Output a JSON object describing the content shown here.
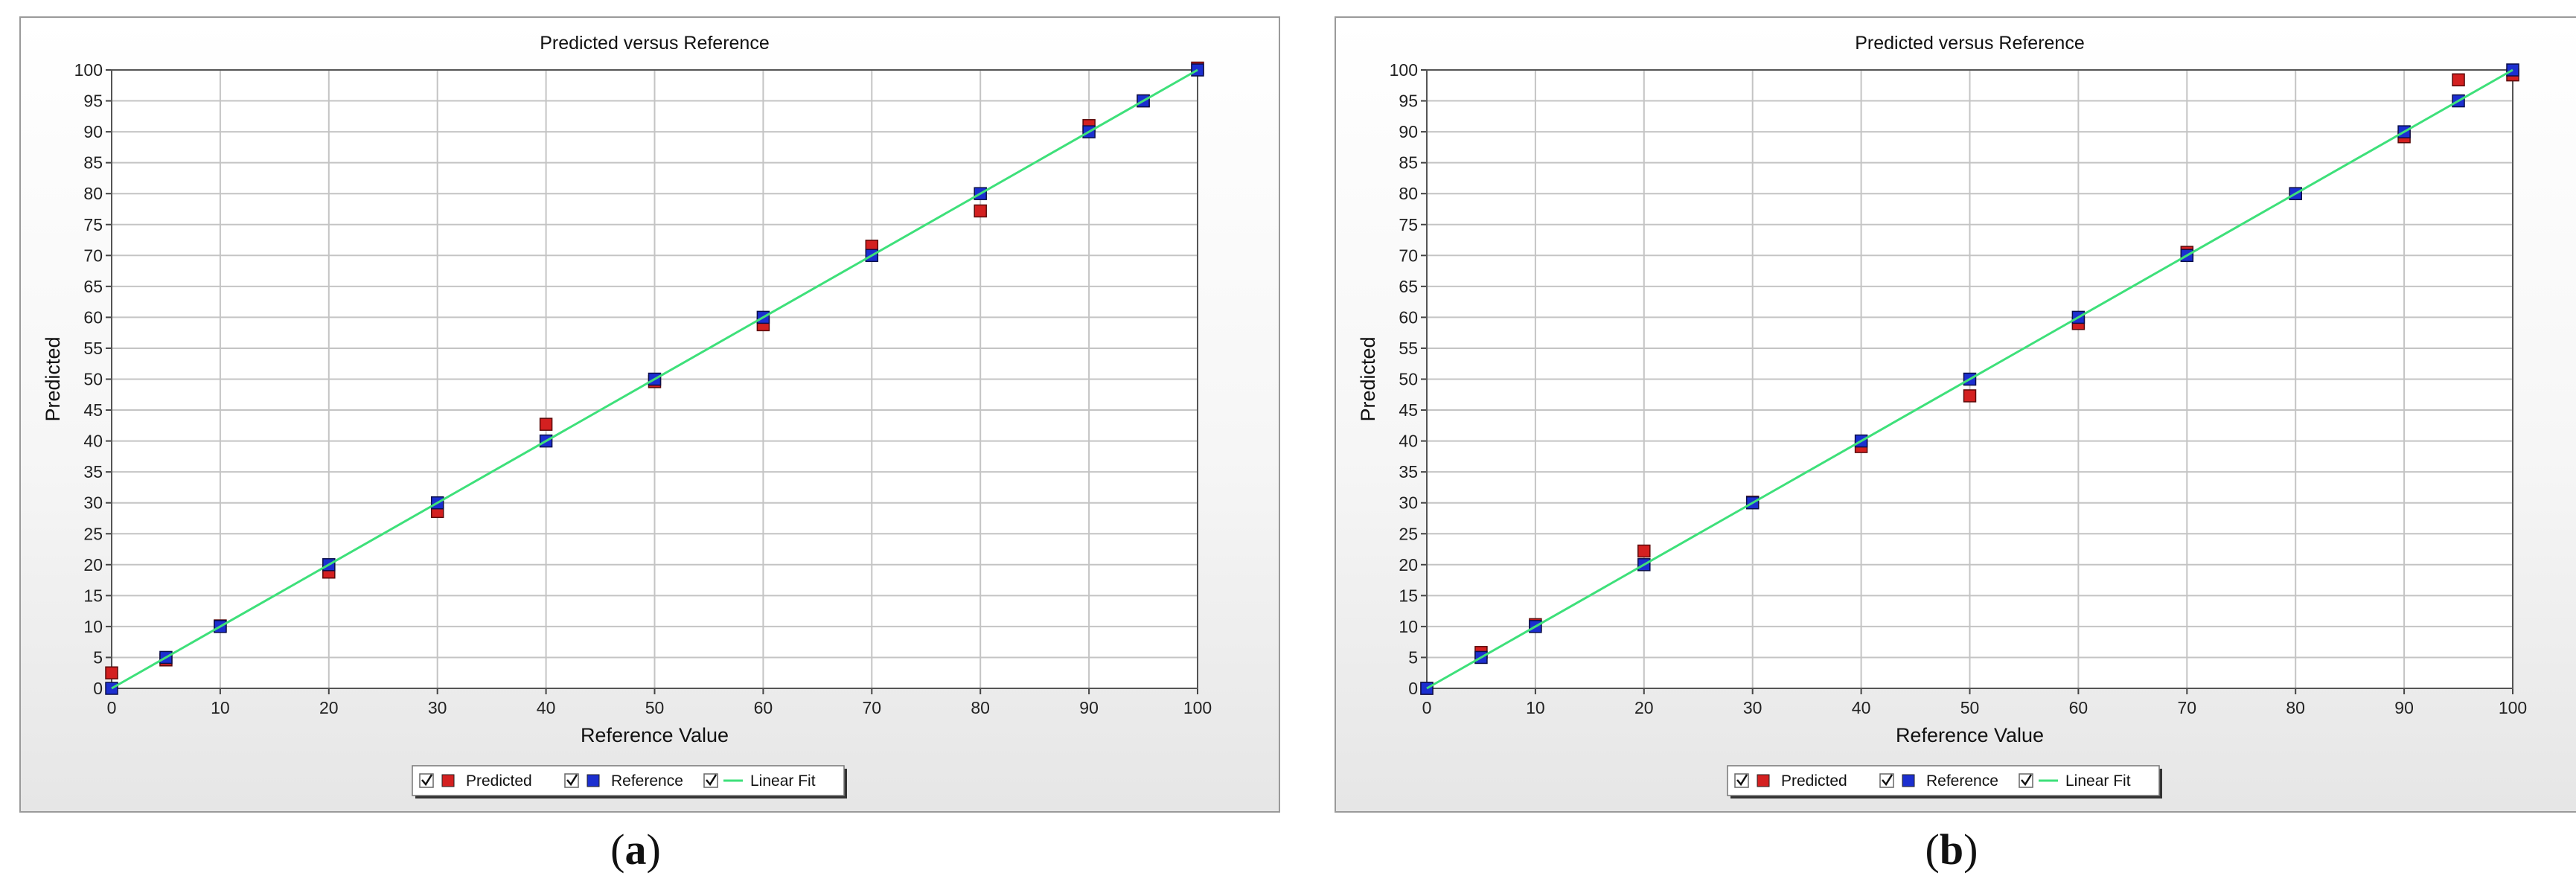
{
  "figure": {
    "panels": [
      {
        "caption": "a"
      },
      {
        "caption": "b"
      }
    ]
  },
  "colors": {
    "predicted": "#d42020",
    "reference": "#1c2fd0",
    "fit": "#3ee07a",
    "grid": "#c4c4c4"
  },
  "chart_data": [
    {
      "type": "scatter",
      "title": "Predicted versus Reference",
      "xlabel": "Reference Value",
      "ylabel": "Predicted",
      "xlim": [
        0,
        100
      ],
      "ylim": [
        0,
        100
      ],
      "xticks": [
        0,
        10,
        20,
        30,
        40,
        50,
        60,
        70,
        80,
        90,
        100
      ],
      "yticks": [
        0,
        5,
        10,
        15,
        20,
        25,
        30,
        35,
        40,
        45,
        50,
        55,
        60,
        65,
        70,
        75,
        80,
        85,
        90,
        95,
        100
      ],
      "grid": true,
      "legend_position": "bottom-center",
      "series": [
        {
          "name": "Predicted",
          "x": [
            0,
            5,
            10,
            20,
            30,
            40,
            50,
            60,
            70,
            80,
            90,
            95,
            100
          ],
          "y": [
            2.5,
            4.6,
            10.1,
            18.8,
            28.6,
            42.7,
            49.6,
            58.8,
            71.5,
            77.2,
            91.0,
            95.0,
            100.3
          ]
        },
        {
          "name": "Reference",
          "x": [
            0,
            5,
            10,
            20,
            30,
            40,
            50,
            60,
            70,
            80,
            90,
            95,
            100
          ],
          "y": [
            0,
            5,
            10,
            20,
            30,
            40,
            50,
            60,
            70,
            80,
            90,
            95,
            100
          ]
        },
        {
          "name": "Linear Fit",
          "x": [
            0,
            100
          ],
          "y": [
            0,
            100
          ]
        }
      ]
    },
    {
      "type": "scatter",
      "title": "Predicted versus Reference",
      "xlabel": "Reference Value",
      "ylabel": "Predicted",
      "xlim": [
        0,
        100
      ],
      "ylim": [
        0,
        100
      ],
      "xticks": [
        0,
        10,
        20,
        30,
        40,
        50,
        60,
        70,
        80,
        90,
        100
      ],
      "yticks": [
        0,
        5,
        10,
        15,
        20,
        25,
        30,
        35,
        40,
        45,
        50,
        55,
        60,
        65,
        70,
        75,
        80,
        85,
        90,
        95,
        100
      ],
      "grid": true,
      "legend_position": "bottom-center",
      "series": [
        {
          "name": "Predicted",
          "x": [
            0,
            5,
            10,
            20,
            30,
            40,
            50,
            60,
            70,
            80,
            90,
            95,
            100
          ],
          "y": [
            0,
            5.8,
            10.3,
            22.2,
            30.1,
            39.1,
            47.3,
            59.0,
            70.5,
            80.0,
            89.2,
            98.4,
            99.2
          ]
        },
        {
          "name": "Reference",
          "x": [
            0,
            5,
            10,
            20,
            30,
            40,
            50,
            60,
            70,
            80,
            90,
            95,
            100
          ],
          "y": [
            0,
            5,
            10,
            20,
            30,
            40,
            50,
            60,
            70,
            80,
            90,
            95,
            100
          ]
        },
        {
          "name": "Linear Fit",
          "x": [
            0,
            100
          ],
          "y": [
            0,
            100
          ]
        }
      ]
    }
  ]
}
